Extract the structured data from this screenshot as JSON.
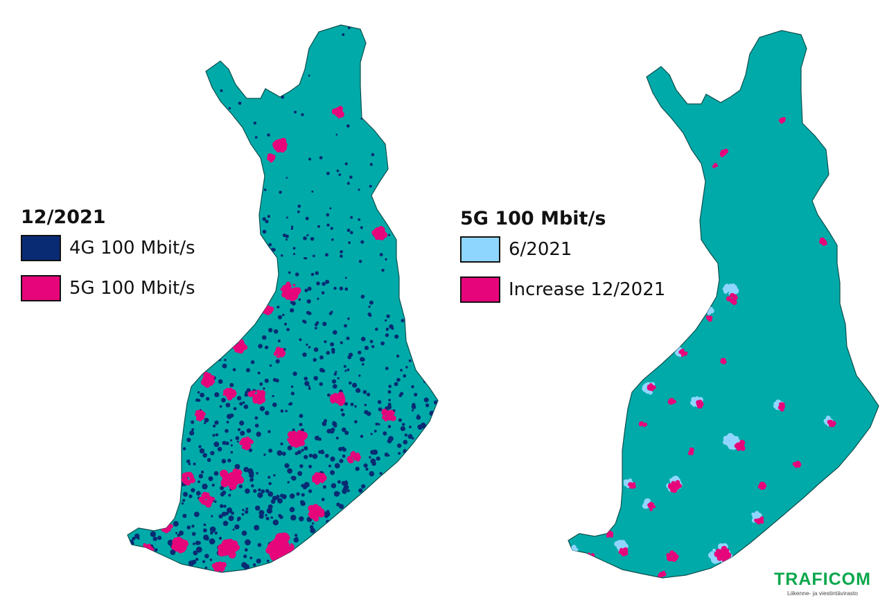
{
  "colors": {
    "land": "#00aaa8",
    "border": "#0b4f4d",
    "lte_4g": "#082b73",
    "nr_5g": "#e6057a",
    "nr_5g_june": "#8fd6ff",
    "logo_green": "#0aa74c"
  },
  "left_map": {
    "legend_title": "12/2021",
    "legend": [
      {
        "label": "4G 100 Mbit/s",
        "color": "#082b73"
      },
      {
        "label": "5G 100 Mbit/s",
        "color": "#e6057a"
      }
    ]
  },
  "right_map": {
    "legend_title": "5G 100 Mbit/s",
    "legend": [
      {
        "label": "6/2021",
        "color": "#8fd6ff"
      },
      {
        "label": "Increase 12/2021",
        "color": "#e6057a"
      }
    ]
  },
  "logo": {
    "name": "TRAFICOM",
    "subtitle": "Liikenne- ja viestintävirasto"
  }
}
